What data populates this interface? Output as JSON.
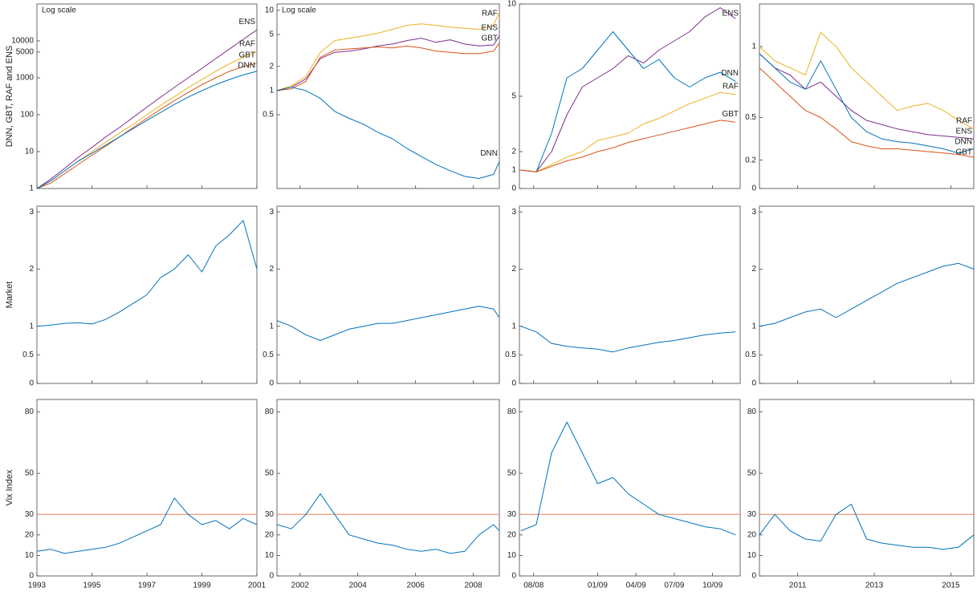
{
  "chart_data": [
    {
      "type": "line",
      "log": true,
      "y_label": "DNN, GBT, RAF and ENS",
      "annotation": "Log scale",
      "series_labels": true,
      "xlim": [
        1993,
        2001
      ],
      "ylim": [
        1,
        100000
      ],
      "yticks": [
        1,
        10,
        100,
        1000,
        5000,
        10000
      ],
      "x": [
        1993,
        1993.5,
        1994,
        1994.5,
        1995,
        1995.5,
        1996,
        1996.5,
        1997,
        1997.5,
        1998,
        1998.5,
        1999,
        1999.5,
        2000,
        2000.5,
        2001
      ],
      "series": [
        {
          "name": "ENS",
          "color": "#7e2f8e",
          "values": [
            1,
            1.8,
            3.5,
            7,
            13,
            25,
            45,
            85,
            160,
            300,
            550,
            1000,
            1800,
            3300,
            6000,
            11000,
            20000
          ]
        },
        {
          "name": "RAF",
          "color": "#edb120",
          "values": [
            1,
            1.6,
            3,
            5.5,
            10,
            18,
            32,
            55,
            100,
            180,
            310,
            540,
            900,
            1500,
            2400,
            3600,
            5000
          ]
        },
        {
          "name": "GBT",
          "color": "#d95319",
          "values": [
            1,
            1.4,
            2.5,
            4.5,
            8,
            14,
            25,
            45,
            80,
            140,
            240,
            400,
            650,
            1000,
            1500,
            2000,
            2500
          ]
        },
        {
          "name": "DNN",
          "color": "#0072bd",
          "values": [
            1,
            1.6,
            3,
            5.5,
            9,
            15,
            25,
            42,
            70,
            115,
            190,
            300,
            450,
            650,
            900,
            1200,
            1500
          ]
        }
      ]
    },
    {
      "type": "line",
      "log": true,
      "annotation": "Log scale",
      "series_labels": true,
      "xlim": [
        2001.2,
        2008.9
      ],
      "ylim": [
        0.06,
        12
      ],
      "yticks": [
        0.5,
        1,
        2,
        5,
        10
      ],
      "x": [
        2001.2,
        2001.7,
        2002.2,
        2002.7,
        2003.2,
        2003.7,
        2004.2,
        2004.7,
        2005.2,
        2005.7,
        2006.2,
        2006.7,
        2007.2,
        2007.7,
        2008.2,
        2008.7,
        2008.9
      ],
      "series": [
        {
          "name": "RAF",
          "color": "#edb120",
          "values": [
            1,
            1.15,
            1.5,
            3,
            4.2,
            4.5,
            4.8,
            5.2,
            5.8,
            6.5,
            6.8,
            6.5,
            6.2,
            6,
            5.8,
            6.5,
            9.5
          ]
        },
        {
          "name": "ENS",
          "color": "#7e2f8e",
          "values": [
            1,
            1.1,
            1.4,
            2.5,
            3,
            3.1,
            3.3,
            3.6,
            3.8,
            4.2,
            4.5,
            4,
            4.3,
            3.8,
            3.6,
            3.7,
            4.8
          ]
        },
        {
          "name": "GBT",
          "color": "#d95319",
          "values": [
            1,
            1.05,
            1.3,
            2.6,
            3.2,
            3.3,
            3.4,
            3.5,
            3.4,
            3.6,
            3.4,
            3.1,
            3,
            2.9,
            2.9,
            3.1,
            3.9
          ]
        },
        {
          "name": "DNN",
          "color": "#0072bd",
          "values": [
            1,
            1.1,
            1,
            0.8,
            0.55,
            0.45,
            0.38,
            0.3,
            0.25,
            0.19,
            0.15,
            0.12,
            0.1,
            0.085,
            0.08,
            0.09,
            0.13
          ]
        }
      ]
    },
    {
      "type": "line",
      "log": false,
      "series_labels": true,
      "xlim": [
        2008.49,
        2009.93
      ],
      "ylim": [
        0,
        10
      ],
      "yticks": [
        0,
        1,
        2,
        5,
        10
      ],
      "x": [
        2008.5,
        2008.6,
        2008.7,
        2008.8,
        2008.9,
        2009,
        2009.1,
        2009.2,
        2009.3,
        2009.4,
        2009.5,
        2009.6,
        2009.7,
        2009.8,
        2009.9
      ],
      "series": [
        {
          "name": "ENS",
          "color": "#7e2f8e",
          "values": [
            1,
            0.9,
            2,
            4,
            5.5,
            6,
            6.5,
            7.2,
            6.8,
            7.5,
            8,
            8.5,
            9.3,
            9.8,
            9.2
          ]
        },
        {
          "name": "DNN",
          "color": "#0072bd",
          "values": [
            1,
            0.9,
            3,
            6,
            6.5,
            7.5,
            8.5,
            7.5,
            6.5,
            7,
            6,
            5.5,
            6,
            6.3,
            5.8
          ]
        },
        {
          "name": "RAF",
          "color": "#edb120",
          "values": [
            1,
            0.9,
            1.3,
            1.7,
            2,
            2.6,
            2.8,
            3,
            3.5,
            3.8,
            4.2,
            4.6,
            4.9,
            5.2,
            5.1
          ]
        },
        {
          "name": "GBT",
          "color": "#d95319",
          "values": [
            1,
            0.9,
            1.2,
            1.5,
            1.7,
            2,
            2.2,
            2.5,
            2.7,
            2.9,
            3.1,
            3.3,
            3.5,
            3.7,
            3.6
          ]
        }
      ]
    },
    {
      "type": "line",
      "log": false,
      "series_labels": true,
      "xlim": [
        2010,
        2015.6
      ],
      "ylim": [
        0,
        1.3
      ],
      "yticks": [
        0,
        0.2,
        0.5,
        1
      ],
      "x": [
        2010,
        2010.4,
        2010.8,
        2011.2,
        2011.6,
        2012,
        2012.4,
        2012.8,
        2013.2,
        2013.6,
        2014,
        2014.4,
        2014.8,
        2015.2,
        2015.6
      ],
      "series": [
        {
          "name": "RAF",
          "color": "#edb120",
          "values": [
            1,
            0.9,
            0.85,
            0.8,
            1.1,
            1,
            0.85,
            0.75,
            0.65,
            0.55,
            0.58,
            0.6,
            0.55,
            0.48,
            0.42
          ]
        },
        {
          "name": "ENS",
          "color": "#7e2f8e",
          "values": [
            0.95,
            0.85,
            0.8,
            0.7,
            0.75,
            0.65,
            0.55,
            0.48,
            0.45,
            0.42,
            0.4,
            0.38,
            0.37,
            0.36,
            0.35
          ]
        },
        {
          "name": "GBT",
          "color": "#d95319",
          "values": [
            0.85,
            0.75,
            0.65,
            0.55,
            0.5,
            0.42,
            0.33,
            0.3,
            0.28,
            0.28,
            0.27,
            0.26,
            0.25,
            0.24,
            0.22
          ]
        },
        {
          "name": "DNN",
          "color": "#0072bd",
          "values": [
            0.95,
            0.85,
            0.75,
            0.7,
            0.9,
            0.7,
            0.5,
            0.4,
            0.35,
            0.33,
            0.32,
            0.3,
            0.28,
            0.25,
            0.28
          ]
        }
      ]
    },
    {
      "type": "line",
      "log": false,
      "y_label": "Market",
      "xlim": [
        1993,
        2001
      ],
      "ylim": [
        0,
        3.1
      ],
      "yticks": [
        0,
        0.5,
        1,
        2,
        3
      ],
      "x": [
        1993,
        1993.5,
        1994,
        1994.5,
        1995,
        1995.5,
        1996,
        1996.5,
        1997,
        1997.5,
        1998,
        1998.5,
        1999,
        1999.5,
        2000,
        2000.5,
        2001
      ],
      "series": [
        {
          "color": "#0072bd",
          "values": [
            1,
            1.02,
            1.05,
            1.06,
            1.04,
            1.12,
            1.25,
            1.4,
            1.55,
            1.85,
            2,
            2.25,
            1.95,
            2.4,
            2.6,
            2.85,
            2
          ]
        }
      ]
    },
    {
      "type": "line",
      "log": false,
      "xlim": [
        2001.2,
        2008.9
      ],
      "ylim": [
        0,
        3.1
      ],
      "yticks": [
        0,
        0.5,
        1,
        2,
        3
      ],
      "x": [
        2001.2,
        2001.7,
        2002.2,
        2002.7,
        2003.2,
        2003.7,
        2004.2,
        2004.7,
        2005.2,
        2005.7,
        2006.2,
        2006.7,
        2007.2,
        2007.7,
        2008.2,
        2008.7,
        2008.9
      ],
      "series": [
        {
          "color": "#0072bd",
          "values": [
            1.1,
            1,
            0.85,
            0.75,
            0.85,
            0.95,
            1,
            1.05,
            1.05,
            1.1,
            1.15,
            1.2,
            1.25,
            1.3,
            1.35,
            1.3,
            1.15
          ]
        }
      ]
    },
    {
      "type": "line",
      "log": false,
      "xlim": [
        2008.49,
        2009.93
      ],
      "ylim": [
        0,
        3.1
      ],
      "yticks": [
        0,
        0.5,
        1,
        2,
        3
      ],
      "x": [
        2008.5,
        2008.6,
        2008.7,
        2008.8,
        2008.9,
        2009,
        2009.1,
        2009.2,
        2009.3,
        2009.4,
        2009.5,
        2009.6,
        2009.7,
        2009.8,
        2009.9
      ],
      "series": [
        {
          "color": "#0072bd",
          "values": [
            1,
            0.9,
            0.7,
            0.65,
            0.62,
            0.6,
            0.55,
            0.62,
            0.67,
            0.72,
            0.75,
            0.8,
            0.85,
            0.88,
            0.9
          ]
        }
      ]
    },
    {
      "type": "line",
      "log": false,
      "xlim": [
        2010,
        2015.6
      ],
      "ylim": [
        0,
        3.1
      ],
      "yticks": [
        0,
        0.5,
        1,
        2,
        3
      ],
      "x": [
        2010,
        2010.4,
        2010.8,
        2011.2,
        2011.6,
        2012,
        2012.4,
        2012.8,
        2013.2,
        2013.6,
        2014,
        2014.4,
        2014.8,
        2015.2,
        2015.6
      ],
      "series": [
        {
          "color": "#0072bd",
          "values": [
            1,
            1.05,
            1.15,
            1.25,
            1.3,
            1.15,
            1.3,
            1.45,
            1.6,
            1.75,
            1.85,
            1.95,
            2.05,
            2.1,
            2
          ]
        }
      ]
    },
    {
      "type": "line",
      "log": false,
      "y_label": "Vix Index",
      "hline": 30,
      "hline_color": "#e8967a",
      "xlim": [
        1993,
        2001
      ],
      "ylim": [
        0,
        86
      ],
      "yticks": [
        0,
        10,
        20,
        30,
        50,
        80
      ],
      "xticks": [
        1993,
        1995,
        1997,
        1999,
        2001
      ],
      "x": [
        1993,
        1993.5,
        1994,
        1994.5,
        1995,
        1995.5,
        1996,
        1996.5,
        1997,
        1997.5,
        1998,
        1998.5,
        1999,
        1999.5,
        2000,
        2000.5,
        2001
      ],
      "series": [
        {
          "color": "#0072bd",
          "values": [
            12,
            13,
            11,
            12,
            13,
            14,
            16,
            19,
            22,
            25,
            38,
            30,
            25,
            27,
            23,
            28,
            25
          ]
        }
      ]
    },
    {
      "type": "line",
      "log": false,
      "hline": 30,
      "hline_color": "#e8967a",
      "xlim": [
        2001.2,
        2008.9
      ],
      "ylim": [
        0,
        86
      ],
      "yticks": [
        0,
        10,
        20,
        30,
        50,
        80
      ],
      "xticks": [
        2002,
        2004,
        2006,
        2008
      ],
      "x": [
        2001.2,
        2001.7,
        2002.2,
        2002.7,
        2003.2,
        2003.7,
        2004.2,
        2004.7,
        2005.2,
        2005.7,
        2006.2,
        2006.7,
        2007.2,
        2007.7,
        2008.2,
        2008.7,
        2008.9
      ],
      "series": [
        {
          "color": "#0072bd",
          "values": [
            25,
            23,
            30,
            40,
            30,
            20,
            18,
            16,
            15,
            13,
            12,
            13,
            11,
            12,
            20,
            25,
            22
          ]
        }
      ]
    },
    {
      "type": "line",
      "log": false,
      "hline": 30,
      "hline_color": "#e8967a",
      "xlim": [
        2008.49,
        2009.93
      ],
      "ylim": [
        0,
        86
      ],
      "yticks": [
        0,
        10,
        20,
        30,
        50,
        80
      ],
      "xticks": [
        {
          "value": 2008.583,
          "label": "08/08"
        },
        {
          "value": 2009,
          "label": "01/09"
        },
        {
          "value": 2009.25,
          "label": "04/09"
        },
        {
          "value": 2009.5,
          "label": "07/09"
        },
        {
          "value": 2009.75,
          "label": "10/09"
        }
      ],
      "x": [
        2008.5,
        2008.6,
        2008.7,
        2008.8,
        2008.9,
        2009,
        2009.1,
        2009.2,
        2009.3,
        2009.4,
        2009.5,
        2009.6,
        2009.7,
        2009.8,
        2009.9
      ],
      "series": [
        {
          "color": "#0072bd",
          "values": [
            22,
            25,
            60,
            75,
            60,
            45,
            48,
            40,
            35,
            30,
            28,
            26,
            24,
            23,
            20
          ]
        }
      ]
    },
    {
      "type": "line",
      "log": false,
      "hline": 30,
      "hline_color": "#e8967a",
      "xlim": [
        2010,
        2015.6
      ],
      "ylim": [
        0,
        86
      ],
      "yticks": [
        0,
        10,
        20,
        30,
        50,
        80
      ],
      "xticks": [
        2011,
        2013,
        2015
      ],
      "x": [
        2010,
        2010.4,
        2010.8,
        2011.2,
        2011.6,
        2012,
        2012.4,
        2012.8,
        2013.2,
        2013.6,
        2014,
        2014.4,
        2014.8,
        2015.2,
        2015.6
      ],
      "series": [
        {
          "color": "#0072bd",
          "values": [
            20,
            30,
            22,
            18,
            17,
            30,
            35,
            18,
            16,
            15,
            14,
            14,
            13,
            14,
            20
          ]
        }
      ]
    }
  ]
}
